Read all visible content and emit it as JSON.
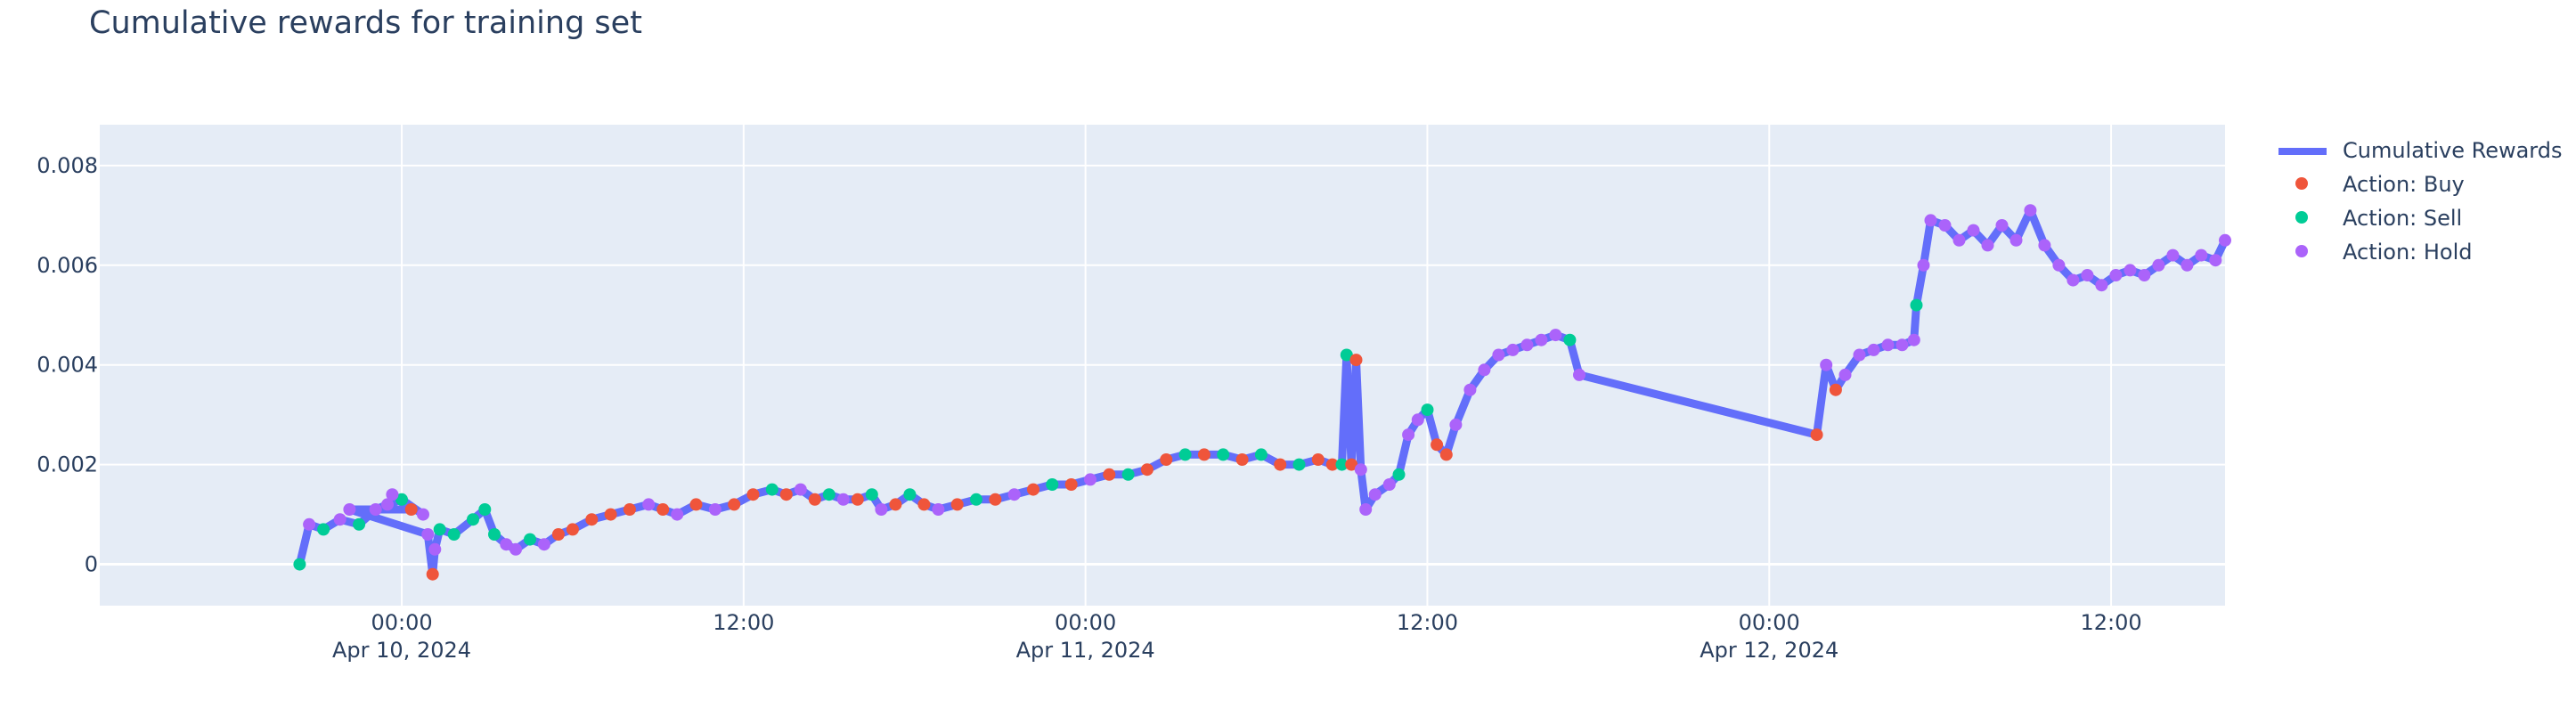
{
  "title": "Cumulative rewards for training set",
  "chart_data": {
    "type": "line",
    "title": "Cumulative rewards for training set",
    "xlabel": "",
    "ylabel": "",
    "x_axis_kind": "datetime",
    "xlim": [
      "2024-04-09T13:24:00",
      "2024-04-12T16:00:00"
    ],
    "ylim": [
      -0.00083,
      0.00882
    ],
    "grid": true,
    "legend_position": "top-right, outside plot",
    "plot_background": "#e5ecf6",
    "x_ticks": [
      {
        "t": "2024-04-10T00:00",
        "label": "00:00",
        "sublabel": "Apr 10, 2024"
      },
      {
        "t": "2024-04-10T12:00",
        "label": "12:00",
        "sublabel": ""
      },
      {
        "t": "2024-04-11T00:00",
        "label": "00:00",
        "sublabel": "Apr 11, 2024"
      },
      {
        "t": "2024-04-11T12:00",
        "label": "12:00",
        "sublabel": ""
      },
      {
        "t": "2024-04-12T00:00",
        "label": "00:00",
        "sublabel": "Apr 12, 2024"
      },
      {
        "t": "2024-04-12T12:00",
        "label": "12:00",
        "sublabel": ""
      }
    ],
    "y_ticks": [
      {
        "v": 0,
        "label": "0"
      },
      {
        "v": 0.002,
        "label": "0.002"
      },
      {
        "v": 0.004,
        "label": "0.004"
      },
      {
        "v": 0.006,
        "label": "0.006"
      },
      {
        "v": 0.008,
        "label": "0.008"
      }
    ],
    "action_colors": {
      "Buy": "#ef553b",
      "Sell": "#00cc96",
      "Hold": "#ab63fa"
    },
    "series": [
      {
        "name": "Cumulative Rewards",
        "mode": "line+markers",
        "line_color": "#636efa",
        "points": [
          [
            "2024-04-09T20:25",
            0.0,
            "Sell"
          ],
          [
            "2024-04-09T20:45",
            0.0008,
            "Hold"
          ],
          [
            "2024-04-09T21:15",
            0.0007,
            "Sell"
          ],
          [
            "2024-04-09T21:50",
            0.0009,
            "Hold"
          ],
          [
            "2024-04-09T22:30",
            0.0008,
            "Sell"
          ],
          [
            "2024-04-09T23:05",
            0.0011,
            "Hold"
          ],
          [
            "2024-04-09T23:30",
            0.0012,
            "Hold"
          ],
          [
            "2024-04-10T00:00",
            0.0013,
            "Sell"
          ],
          [
            "2024-04-10T00:45",
            0.001,
            "Hold"
          ],
          [
            "2024-04-09T23:40",
            0.0014,
            "Hold"
          ],
          [
            "2024-04-10T00:20",
            0.0011,
            "Buy"
          ],
          [
            "2024-04-09T22:10",
            0.0011,
            "Hold"
          ],
          [
            "2024-04-10T00:55",
            0.0006,
            "Hold"
          ],
          [
            "2024-04-10T01:05",
            -0.0002,
            "Buy"
          ],
          [
            "2024-04-10T01:10",
            0.0003,
            "Hold"
          ],
          [
            "2024-04-10T01:20",
            0.0007,
            "Sell"
          ],
          [
            "2024-04-10T01:50",
            0.0006,
            "Sell"
          ],
          [
            "2024-04-10T02:30",
            0.0009,
            "Sell"
          ],
          [
            "2024-04-10T02:55",
            0.0011,
            "Sell"
          ],
          [
            "2024-04-10T03:15",
            0.0006,
            "Sell"
          ],
          [
            "2024-04-10T03:40",
            0.0004,
            "Hold"
          ],
          [
            "2024-04-10T04:00",
            0.0003,
            "Hold"
          ],
          [
            "2024-04-10T04:30",
            0.0005,
            "Sell"
          ],
          [
            "2024-04-10T05:00",
            0.0004,
            "Hold"
          ],
          [
            "2024-04-10T05:30",
            0.0006,
            "Buy"
          ],
          [
            "2024-04-10T06:00",
            0.0007,
            "Buy"
          ],
          [
            "2024-04-10T06:40",
            0.0009,
            "Buy"
          ],
          [
            "2024-04-10T07:20",
            0.001,
            "Buy"
          ],
          [
            "2024-04-10T08:00",
            0.0011,
            "Buy"
          ],
          [
            "2024-04-10T08:40",
            0.0012,
            "Hold"
          ],
          [
            "2024-04-10T09:10",
            0.0011,
            "Buy"
          ],
          [
            "2024-04-10T09:40",
            0.001,
            "Hold"
          ],
          [
            "2024-04-10T10:20",
            0.0012,
            "Buy"
          ],
          [
            "2024-04-10T11:00",
            0.0011,
            "Hold"
          ],
          [
            "2024-04-10T11:40",
            0.0012,
            "Buy"
          ],
          [
            "2024-04-10T12:20",
            0.0014,
            "Buy"
          ],
          [
            "2024-04-10T13:00",
            0.0015,
            "Sell"
          ],
          [
            "2024-04-10T13:30",
            0.0014,
            "Buy"
          ],
          [
            "2024-04-10T14:00",
            0.0015,
            "Hold"
          ],
          [
            "2024-04-10T14:30",
            0.0013,
            "Buy"
          ],
          [
            "2024-04-10T15:00",
            0.0014,
            "Sell"
          ],
          [
            "2024-04-10T15:30",
            0.0013,
            "Hold"
          ],
          [
            "2024-04-10T16:00",
            0.0013,
            "Buy"
          ],
          [
            "2024-04-10T16:30",
            0.0014,
            "Sell"
          ],
          [
            "2024-04-10T16:50",
            0.0011,
            "Hold"
          ],
          [
            "2024-04-10T17:20",
            0.0012,
            "Buy"
          ],
          [
            "2024-04-10T17:50",
            0.0014,
            "Sell"
          ],
          [
            "2024-04-10T18:20",
            0.0012,
            "Buy"
          ],
          [
            "2024-04-10T18:50",
            0.0011,
            "Hold"
          ],
          [
            "2024-04-10T19:30",
            0.0012,
            "Buy"
          ],
          [
            "2024-04-10T20:10",
            0.0013,
            "Sell"
          ],
          [
            "2024-04-10T20:50",
            0.0013,
            "Buy"
          ],
          [
            "2024-04-10T21:30",
            0.0014,
            "Hold"
          ],
          [
            "2024-04-10T22:10",
            0.0015,
            "Buy"
          ],
          [
            "2024-04-10T22:50",
            0.0016,
            "Sell"
          ],
          [
            "2024-04-10T23:30",
            0.0016,
            "Buy"
          ],
          [
            "2024-04-11T00:10",
            0.0017,
            "Hold"
          ],
          [
            "2024-04-11T00:50",
            0.0018,
            "Buy"
          ],
          [
            "2024-04-11T01:30",
            0.0018,
            "Sell"
          ],
          [
            "2024-04-11T02:10",
            0.0019,
            "Buy"
          ],
          [
            "2024-04-11T02:50",
            0.0021,
            "Buy"
          ],
          [
            "2024-04-11T03:30",
            0.0022,
            "Sell"
          ],
          [
            "2024-04-11T04:10",
            0.0022,
            "Buy"
          ],
          [
            "2024-04-11T04:50",
            0.0022,
            "Sell"
          ],
          [
            "2024-04-11T05:30",
            0.0021,
            "Buy"
          ],
          [
            "2024-04-11T06:10",
            0.0022,
            "Sell"
          ],
          [
            "2024-04-11T06:50",
            0.002,
            "Buy"
          ],
          [
            "2024-04-11T07:30",
            0.002,
            "Sell"
          ],
          [
            "2024-04-11T08:10",
            0.0021,
            "Buy"
          ],
          [
            "2024-04-11T08:40",
            0.002,
            "Buy"
          ],
          [
            "2024-04-11T09:00",
            0.002,
            "Sell"
          ],
          [
            "2024-04-11T09:10",
            0.0042,
            "Sell"
          ],
          [
            "2024-04-11T09:20",
            0.002,
            "Buy"
          ],
          [
            "2024-04-11T09:30",
            0.0041,
            "Buy"
          ],
          [
            "2024-04-11T09:40",
            0.0019,
            "Hold"
          ],
          [
            "2024-04-11T09:50",
            0.0011,
            "Hold"
          ],
          [
            "2024-04-11T10:10",
            0.0014,
            "Hold"
          ],
          [
            "2024-04-11T10:40",
            0.0016,
            "Hold"
          ],
          [
            "2024-04-11T11:00",
            0.0018,
            "Sell"
          ],
          [
            "2024-04-11T11:20",
            0.0026,
            "Hold"
          ],
          [
            "2024-04-11T11:40",
            0.0029,
            "Hold"
          ],
          [
            "2024-04-11T12:00",
            0.0031,
            "Sell"
          ],
          [
            "2024-04-11T12:20",
            0.0024,
            "Buy"
          ],
          [
            "2024-04-11T12:40",
            0.0022,
            "Buy"
          ],
          [
            "2024-04-11T13:00",
            0.0028,
            "Hold"
          ],
          [
            "2024-04-11T13:30",
            0.0035,
            "Hold"
          ],
          [
            "2024-04-11T14:00",
            0.0039,
            "Hold"
          ],
          [
            "2024-04-11T14:30",
            0.0042,
            "Hold"
          ],
          [
            "2024-04-11T15:00",
            0.0043,
            "Hold"
          ],
          [
            "2024-04-11T15:30",
            0.0044,
            "Hold"
          ],
          [
            "2024-04-11T16:00",
            0.0045,
            "Hold"
          ],
          [
            "2024-04-11T16:30",
            0.0046,
            "Hold"
          ],
          [
            "2024-04-11T17:00",
            0.0045,
            "Sell"
          ],
          [
            "2024-04-11T17:20",
            0.0038,
            "Hold"
          ],
          [
            "2024-04-12T01:40",
            0.0026,
            "Buy"
          ],
          [
            "2024-04-12T02:00",
            0.004,
            "Hold"
          ],
          [
            "2024-04-12T02:20",
            0.0035,
            "Buy"
          ],
          [
            "2024-04-12T02:40",
            0.0038,
            "Hold"
          ],
          [
            "2024-04-12T03:10",
            0.0042,
            "Hold"
          ],
          [
            "2024-04-12T03:40",
            0.0043,
            "Hold"
          ],
          [
            "2024-04-12T04:10",
            0.0044,
            "Hold"
          ],
          [
            "2024-04-12T04:40",
            0.0044,
            "Hold"
          ],
          [
            "2024-04-12T05:05",
            0.0045,
            "Hold"
          ],
          [
            "2024-04-12T05:10",
            0.0052,
            "Sell"
          ],
          [
            "2024-04-12T05:25",
            0.006,
            "Hold"
          ],
          [
            "2024-04-12T05:40",
            0.0069,
            "Hold"
          ],
          [
            "2024-04-12T06:10",
            0.0068,
            "Hold"
          ],
          [
            "2024-04-12T06:40",
            0.0065,
            "Hold"
          ],
          [
            "2024-04-12T07:10",
            0.0067,
            "Hold"
          ],
          [
            "2024-04-12T07:40",
            0.0064,
            "Hold"
          ],
          [
            "2024-04-12T08:10",
            0.0068,
            "Hold"
          ],
          [
            "2024-04-12T08:40",
            0.0065,
            "Hold"
          ],
          [
            "2024-04-12T09:10",
            0.0071,
            "Hold"
          ],
          [
            "2024-04-12T09:40",
            0.0064,
            "Hold"
          ],
          [
            "2024-04-12T10:10",
            0.006,
            "Hold"
          ],
          [
            "2024-04-12T10:40",
            0.0057,
            "Hold"
          ],
          [
            "2024-04-12T11:10",
            0.0058,
            "Hold"
          ],
          [
            "2024-04-12T11:40",
            0.0056,
            "Hold"
          ],
          [
            "2024-04-12T12:10",
            0.0058,
            "Hold"
          ],
          [
            "2024-04-12T12:40",
            0.0059,
            "Hold"
          ],
          [
            "2024-04-12T13:10",
            0.0058,
            "Hold"
          ],
          [
            "2024-04-12T13:40",
            0.006,
            "Hold"
          ],
          [
            "2024-04-12T14:10",
            0.0062,
            "Hold"
          ],
          [
            "2024-04-12T14:40",
            0.006,
            "Hold"
          ],
          [
            "2024-04-12T15:10",
            0.0062,
            "Hold"
          ],
          [
            "2024-04-12T15:40",
            0.0061,
            "Hold"
          ],
          [
            "2024-04-12T16:00",
            0.0065,
            "Hold"
          ]
        ]
      },
      {
        "name": "Action: Buy",
        "mode": "markers",
        "color": "#ef553b"
      },
      {
        "name": "Action: Sell",
        "mode": "markers",
        "color": "#00cc96"
      },
      {
        "name": "Action: Hold",
        "mode": "markers",
        "color": "#ab63fa"
      }
    ]
  },
  "legend": [
    {
      "label": "Cumulative Rewards",
      "kind": "line",
      "color": "#636efa"
    },
    {
      "label": "Action: Buy",
      "kind": "marker",
      "color": "#ef553b"
    },
    {
      "label": "Action: Sell",
      "kind": "marker",
      "color": "#00cc96"
    },
    {
      "label": "Action: Hold",
      "kind": "marker",
      "color": "#ab63fa"
    }
  ]
}
